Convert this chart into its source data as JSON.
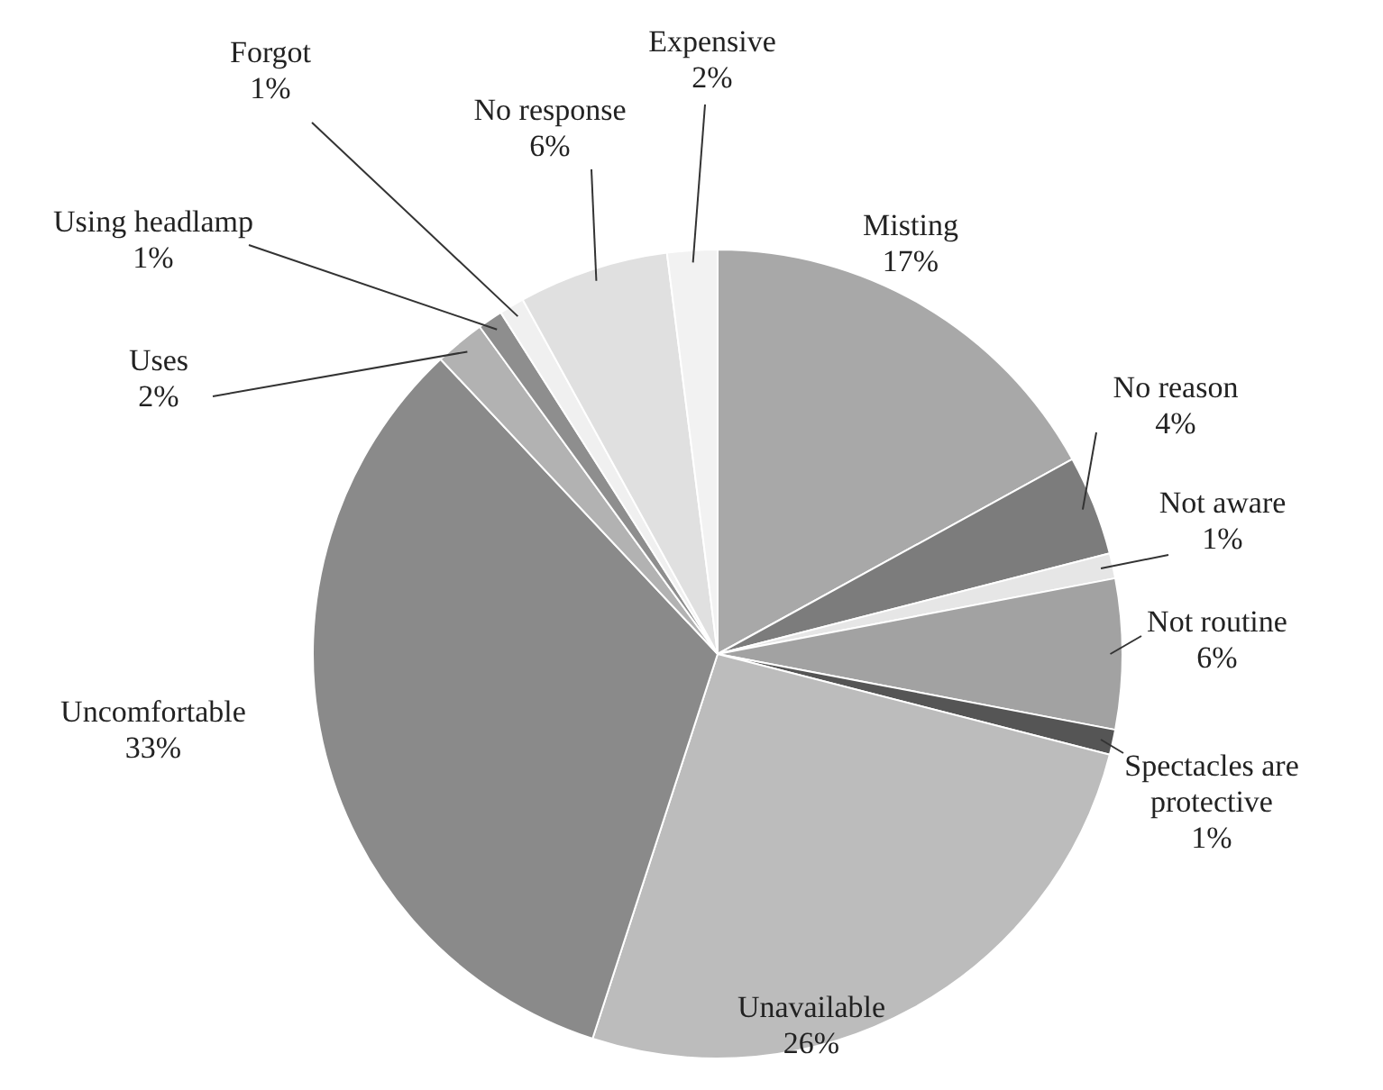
{
  "chart_data": {
    "type": "pie",
    "categories": [
      "Misting",
      "No reason",
      "Not aware",
      "Not routine",
      "Spectacles are protective",
      "Unavailable",
      "Uncomfortable",
      "Uses",
      "Using headlamp",
      "Forgot",
      "No response",
      "Expensive"
    ],
    "values": [
      17,
      4,
      1,
      6,
      1,
      26,
      33,
      2,
      1,
      1,
      6,
      2
    ],
    "value_labels": [
      "17%",
      "4%",
      "1%",
      "6%",
      "1%",
      "26%",
      "33%",
      "2%",
      "1%",
      "1%",
      "6%",
      "2%"
    ],
    "colors": [
      "#a8a8a8",
      "#7c7c7c",
      "#e6e6e6",
      "#a2a2a2",
      "#555555",
      "#bcbcbc",
      "#8a8a8a",
      "#b2b2b2",
      "#8e8e8e",
      "#f0f0f0",
      "#e0e0e0",
      "#f2f2f2"
    ],
    "legend": false
  }
}
